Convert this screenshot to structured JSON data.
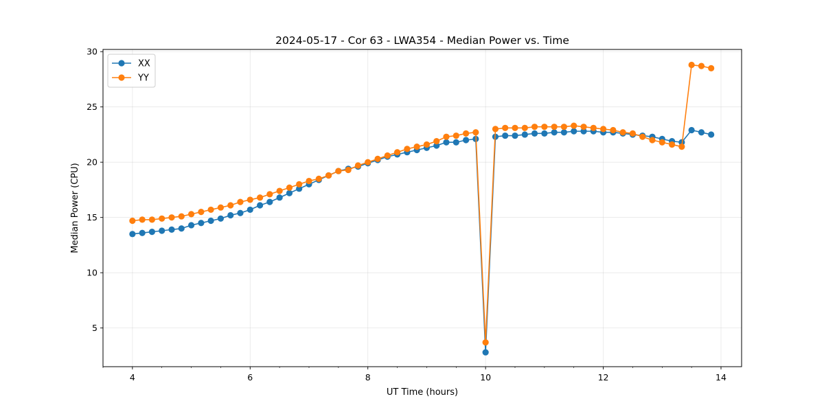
{
  "chart_data": {
    "type": "line",
    "title": "2024-05-17 - Cor 63 - LWA354 - Median Power vs. Time",
    "xlabel": "UT Time (hours)",
    "ylabel": "Median Power (CPU)",
    "xlim": [
      3.5,
      14.35
    ],
    "ylim": [
      1.5,
      30.2
    ],
    "xticks": [
      4,
      6,
      8,
      10,
      12,
      14
    ],
    "yticks": [
      5,
      10,
      15,
      20,
      25,
      30
    ],
    "xticklabels": [
      "4",
      "6",
      "8",
      "10",
      "12",
      "14"
    ],
    "yticklabels": [
      "5",
      "10",
      "15",
      "20",
      "25",
      "30"
    ],
    "grid": true,
    "legend_position": "top-left",
    "x": [
      4.0,
      4.167,
      4.333,
      4.5,
      4.667,
      4.833,
      5.0,
      5.167,
      5.333,
      5.5,
      5.667,
      5.833,
      6.0,
      6.167,
      6.333,
      6.5,
      6.667,
      6.833,
      7.0,
      7.167,
      7.333,
      7.5,
      7.667,
      7.833,
      8.0,
      8.167,
      8.333,
      8.5,
      8.667,
      8.833,
      9.0,
      9.167,
      9.333,
      9.5,
      9.667,
      9.833,
      10.0,
      10.167,
      10.333,
      10.5,
      10.667,
      10.833,
      11.0,
      11.167,
      11.333,
      11.5,
      11.667,
      11.833,
      12.0,
      12.167,
      12.333,
      12.5,
      12.667,
      12.833,
      13.0,
      13.167,
      13.333,
      13.5,
      13.667,
      13.833
    ],
    "series": [
      {
        "name": "XX",
        "color": "#1f77b4",
        "values": [
          13.5,
          13.6,
          13.7,
          13.8,
          13.9,
          14.0,
          14.3,
          14.5,
          14.7,
          14.9,
          15.2,
          15.4,
          15.7,
          16.1,
          16.4,
          16.8,
          17.2,
          17.6,
          18.0,
          18.4,
          18.8,
          19.2,
          19.4,
          19.6,
          19.9,
          20.2,
          20.5,
          20.7,
          20.9,
          21.1,
          21.3,
          21.5,
          21.8,
          21.8,
          22.0,
          22.1,
          2.8,
          22.3,
          22.4,
          22.4,
          22.5,
          22.6,
          22.6,
          22.7,
          22.7,
          22.8,
          22.8,
          22.8,
          22.7,
          22.7,
          22.6,
          22.5,
          22.4,
          22.3,
          22.1,
          21.9,
          21.8,
          22.9,
          22.7,
          22.5
        ]
      },
      {
        "name": "YY",
        "color": "#ff7f0e",
        "values": [
          14.7,
          14.8,
          14.8,
          14.9,
          15.0,
          15.1,
          15.3,
          15.5,
          15.7,
          15.9,
          16.1,
          16.4,
          16.6,
          16.8,
          17.1,
          17.4,
          17.7,
          18.0,
          18.3,
          18.5,
          18.8,
          19.2,
          19.3,
          19.7,
          20.0,
          20.3,
          20.6,
          20.9,
          21.2,
          21.4,
          21.6,
          21.9,
          22.3,
          22.4,
          22.6,
          22.7,
          3.7,
          23.0,
          23.1,
          23.1,
          23.1,
          23.2,
          23.2,
          23.2,
          23.2,
          23.3,
          23.2,
          23.1,
          23.0,
          22.9,
          22.7,
          22.6,
          22.3,
          22.0,
          21.8,
          21.6,
          21.4,
          28.8,
          28.7,
          28.5
        ]
      }
    ]
  }
}
